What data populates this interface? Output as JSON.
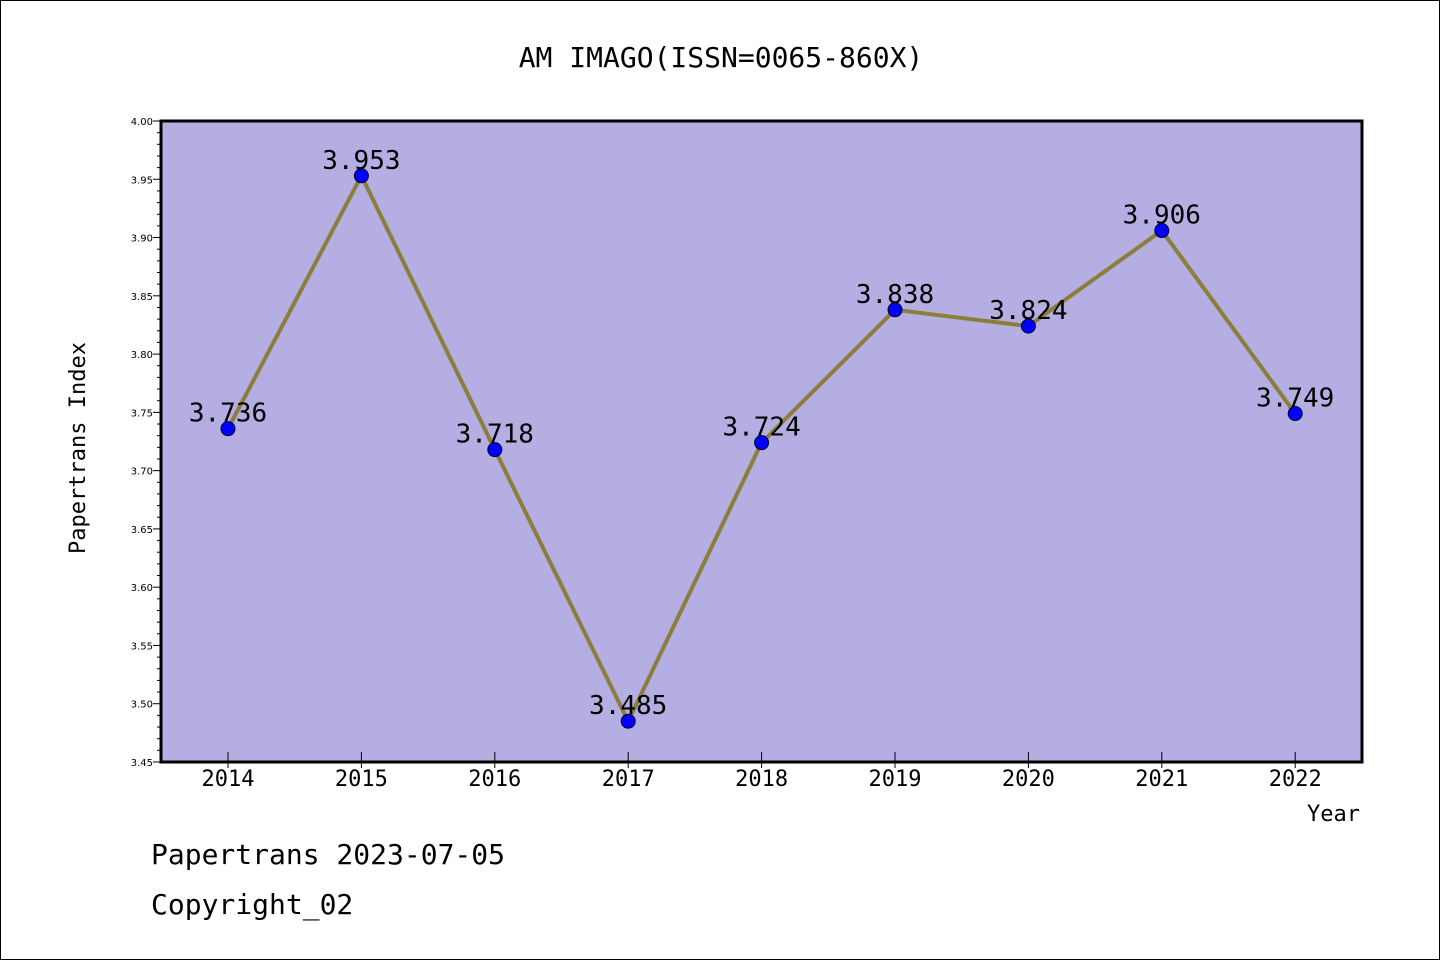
{
  "chart_data": {
    "type": "line",
    "title": "AM IMAGO(ISSN=0065-860X)",
    "xlabel": "Year",
    "ylabel": "Papertrans Index",
    "categories": [
      "2014",
      "2015",
      "2016",
      "2017",
      "2018",
      "2019",
      "2020",
      "2021",
      "2022"
    ],
    "series": [
      {
        "values": [
          3.736,
          3.953,
          3.718,
          3.485,
          3.724,
          3.838,
          3.824,
          3.906,
          3.749
        ],
        "labels": [
          "3.736",
          "3.953",
          "3.718",
          "3.485",
          "3.724",
          "3.838",
          "3.824",
          "3.906",
          "3.749"
        ],
        "line_color": "#8B7D3A",
        "marker_color": "#0000FF"
      }
    ],
    "ylim": [
      3.45,
      4.0
    ],
    "yticks": [
      "3.45",
      "3.50",
      "3.55",
      "3.60",
      "3.65",
      "3.70",
      "3.75",
      "3.80",
      "3.85",
      "3.90",
      "3.95",
      "4.00"
    ],
    "grid": false,
    "plot_background": "#B4AEE2"
  },
  "footer": {
    "line1": "Papertrans 2023-07-05",
    "line2": "Copyright_02"
  }
}
